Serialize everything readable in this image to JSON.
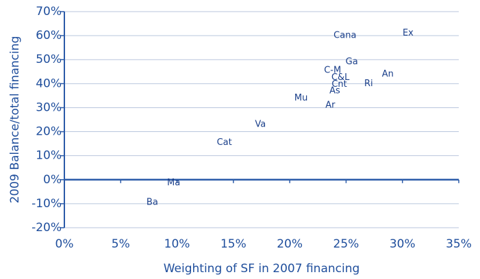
{
  "chart_data": {
    "type": "scatter",
    "x_label": "Weighting of SF in 2007 financing",
    "y_label": "2009 Balance/total financing",
    "point_labels": [
      "Ex",
      "Cana",
      "Ga",
      "C-M",
      "An",
      "C&L",
      "Cnt",
      "Ri",
      "As",
      "Mu",
      "Ar",
      "Va",
      "Cat",
      "Ma",
      "Ba"
    ],
    "x": [
      30.5,
      24.9,
      25.5,
      23.8,
      28.7,
      24.5,
      24.4,
      27,
      24,
      21,
      23.6,
      17.4,
      14.2,
      9.7,
      7.8
    ],
    "values": [
      61,
      60,
      49,
      45.5,
      44,
      42.5,
      39.6,
      40,
      37,
      34,
      31,
      23,
      15.4,
      -1.4,
      -9.4
    ],
    "color": "#1a3f8a",
    "xlim": [
      0,
      35
    ],
    "xticks": [
      {
        "value": 0,
        "label": "0%"
      },
      {
        "value": 5,
        "label": "5%"
      },
      {
        "value": 10,
        "label": "10%"
      },
      {
        "value": 15,
        "label": "15%"
      },
      {
        "value": 20,
        "label": "20%"
      },
      {
        "value": 25,
        "label": "25%"
      },
      {
        "value": 30,
        "label": "30%"
      },
      {
        "value": 35,
        "label": "35%"
      }
    ],
    "ylim": [
      -20,
      70
    ],
    "yticks": [
      {
        "value": -20,
        "label": "-20%"
      },
      {
        "value": -10,
        "label": "-10%"
      },
      {
        "value": 0,
        "label": "0%"
      },
      {
        "value": 10,
        "label": "10%"
      },
      {
        "value": 20,
        "label": "20%"
      },
      {
        "value": 30,
        "label": "30%"
      },
      {
        "value": 40,
        "label": "40%"
      },
      {
        "value": 50,
        "label": "50%"
      },
      {
        "value": 60,
        "label": "60%"
      },
      {
        "value": 70,
        "label": "70%"
      }
    ],
    "grid": true
  }
}
